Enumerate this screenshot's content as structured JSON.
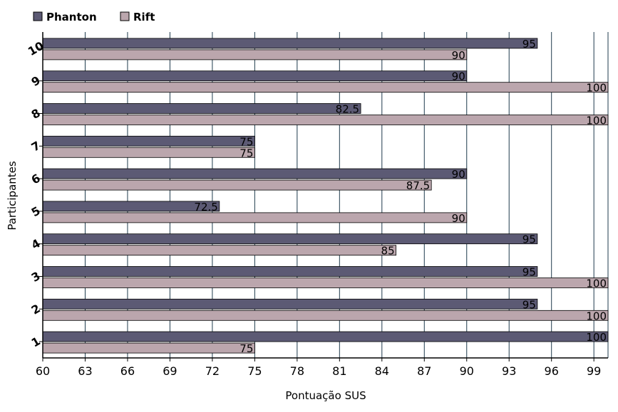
{
  "chart_data": {
    "type": "bar",
    "orientation": "horizontal",
    "categories": [
      "1",
      "2",
      "3",
      "4",
      "5",
      "6",
      "7",
      "8",
      "9",
      "10"
    ],
    "series": [
      {
        "name": "Phanton",
        "color": "#5c5a74",
        "values": [
          100,
          95,
          95,
          95,
          72.5,
          90,
          75,
          82.5,
          90,
          95
        ]
      },
      {
        "name": "Rift",
        "color": "#bba6ad",
        "values": [
          75,
          100,
          100,
          85,
          90,
          87.5,
          75,
          100,
          100,
          90
        ]
      }
    ],
    "xlabel": "Pontuação SUS",
    "ylabel": "Participantes",
    "xlim": [
      60,
      100
    ],
    "xticks": [
      "60",
      "63",
      "66",
      "69",
      "72",
      "75",
      "78",
      "81",
      "84",
      "87",
      "90",
      "93",
      "96",
      "99"
    ],
    "grid": "vertical",
    "legend": "top-left"
  }
}
